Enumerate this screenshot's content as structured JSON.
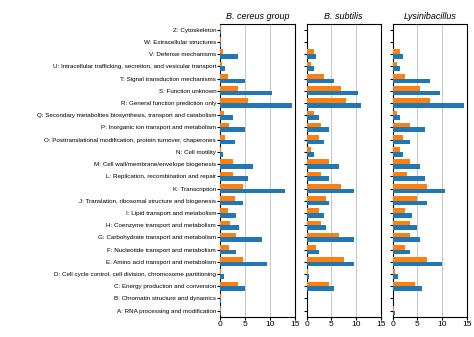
{
  "chart_data": [
    {
      "type": "bar",
      "orientation": "horizontal",
      "title": "B. cereus group",
      "categories": [
        "Z: Cytoskeleton",
        "W: Extracellular structures",
        "V: Defense mechanisms",
        "U: Intracellular trafficking, secretion, and vesicular transport",
        "T: Signal transduction mechanisms",
        "S: Function unknown",
        "R: General function prediction only",
        "Q: Secondary metabolites biosynthesis, transport and catabolism",
        "P: Inorganic ion transport and metabolism",
        "O: Posttranslational modification, protein turnover, chaperones",
        "N: Cell motility",
        "M: Cell wall/membrane/envelope biogenesis",
        "L: Replication, recombination and repair",
        "K: Transcription",
        "J: Translation, ribosomal structure and biogenesis",
        "I: Lipid transport and metabolism",
        "H: Coenzyme transport and metabolism",
        "G: Carbohydrate transport and metabolism",
        "F: Nucleotide transport and metabolism",
        "E: Amino acid transport and metabolism",
        "D: Cell cycle control, cell division, chromosome partitioning",
        "C: Energy production and conversion",
        "B: Chromatin structure and dynamics",
        "A: RNA processing and modification"
      ],
      "series": [
        {
          "values": [
            0.1,
            0.1,
            3.5,
            1.0,
            5.0,
            10.5,
            14.5,
            2.5,
            5.0,
            3.0,
            0.6,
            6.5,
            5.5,
            13.0,
            4.5,
            3.2,
            3.8,
            8.5,
            3.2,
            9.5,
            0.8,
            5.0,
            0.1,
            0.1
          ]
        },
        {
          "values": [
            0.1,
            0.1,
            0.5,
            0.3,
            1.5,
            3.5,
            5.5,
            0.8,
            1.8,
            1.0,
            0.1,
            2.5,
            2.5,
            4.5,
            3.0,
            1.5,
            2.0,
            3.2,
            1.8,
            4.5,
            0.2,
            3.5,
            0.1,
            0.1
          ]
        }
      ],
      "xlim": [
        0,
        15
      ],
      "xticks": [
        0,
        5,
        10,
        15
      ],
      "grid": true
    },
    {
      "type": "bar",
      "orientation": "horizontal",
      "title": "B. subtilis",
      "categories": [
        "Z: Cytoskeleton",
        "W: Extracellular structures",
        "V: Defense mechanisms",
        "U: Intracellular trafficking, secretion, and vesicular transport",
        "T: Signal transduction mechanisms",
        "S: Function unknown",
        "R: General function prediction only",
        "Q: Secondary metabolites biosynthesis, transport and catabolism",
        "P: Inorganic ion transport and metabolism",
        "O: Posttranslational modification, protein turnover, chaperones",
        "N: Cell motility",
        "M: Cell wall/membrane/envelope biogenesis",
        "L: Replication, recombination and repair",
        "K: Transcription",
        "J: Translation, ribosomal structure and biogenesis",
        "I: Lipid transport and metabolism",
        "H: Coenzyme transport and metabolism",
        "G: Carbohydrate transport and metabolism",
        "F: Nucleotide transport and metabolism",
        "E: Amino acid transport and metabolism",
        "D: Cell cycle control, cell division, chromosome partitioning",
        "C: Energy production and conversion",
        "B: Chromatin structure and dynamics",
        "A: RNA processing and modification"
      ],
      "series": [
        {
          "values": [
            0.1,
            0.1,
            2.0,
            1.5,
            5.5,
            10.5,
            11.0,
            2.5,
            4.5,
            3.5,
            1.5,
            6.5,
            4.5,
            9.5,
            4.5,
            3.5,
            4.0,
            9.5,
            2.5,
            9.5,
            0.5,
            5.5,
            0.1,
            0.1
          ]
        },
        {
          "values": [
            0.1,
            0.1,
            1.5,
            1.0,
            3.5,
            7.0,
            8.0,
            1.5,
            3.0,
            2.5,
            1.0,
            4.5,
            3.0,
            7.0,
            4.0,
            2.5,
            3.0,
            6.5,
            2.0,
            7.5,
            0.3,
            4.5,
            0.1,
            0.1
          ]
        }
      ],
      "xlim": [
        0,
        15
      ],
      "xticks": [
        0,
        5,
        10,
        15
      ],
      "grid": true,
      "tick_labels": "x"
    },
    {
      "type": "bar",
      "orientation": "horizontal",
      "title": "Lysinibacillus",
      "categories": [
        "Z: Cytoskeleton",
        "W: Extracellular structures",
        "V: Defense mechanisms",
        "U: Intracellular trafficking, secretion, and vesicular transport",
        "T: Signal transduction mechanisms",
        "S: Function unknown",
        "R: General function prediction only",
        "Q: Secondary metabolites biosynthesis, transport and catabolism",
        "P: Inorganic ion transport and metabolism",
        "O: Posttranslational modification, protein turnover, chaperones",
        "N: Cell motility",
        "M: Cell wall/membrane/envelope biogenesis",
        "L: Replication, recombination and repair",
        "K: Transcription",
        "J: Translation, ribosomal structure and biogenesis",
        "I: Lipid transport and metabolism",
        "H: Coenzyme transport and metabolism",
        "G: Carbohydrate transport and metabolism",
        "F: Nucleotide transport and metabolism",
        "E: Amino acid transport and metabolism",
        "D: Cell cycle control, cell division, chromosome partitioning",
        "C: Energy production and conversion",
        "B: Chromatin structure and dynamics",
        "A: RNA processing and modification"
      ],
      "series": [
        {
          "values": [
            0.1,
            0.1,
            2.0,
            1.5,
            7.5,
            9.5,
            14.5,
            1.5,
            6.5,
            3.5,
            2.0,
            5.5,
            6.5,
            10.5,
            7.0,
            4.0,
            5.0,
            5.5,
            3.5,
            10.0,
            1.0,
            6.0,
            0.1,
            0.5
          ]
        },
        {
          "values": [
            0.1,
            0.1,
            1.5,
            0.8,
            2.5,
            5.5,
            7.5,
            0.8,
            3.5,
            2.0,
            1.5,
            3.5,
            3.0,
            7.0,
            5.0,
            2.5,
            3.5,
            3.5,
            2.5,
            7.0,
            0.5,
            4.5,
            0.1,
            0.3
          ]
        }
      ],
      "xlim": [
        0,
        15
      ],
      "xticks": [
        0,
        5,
        10,
        15
      ],
      "grid": true,
      "tick_labels": "x"
    }
  ]
}
